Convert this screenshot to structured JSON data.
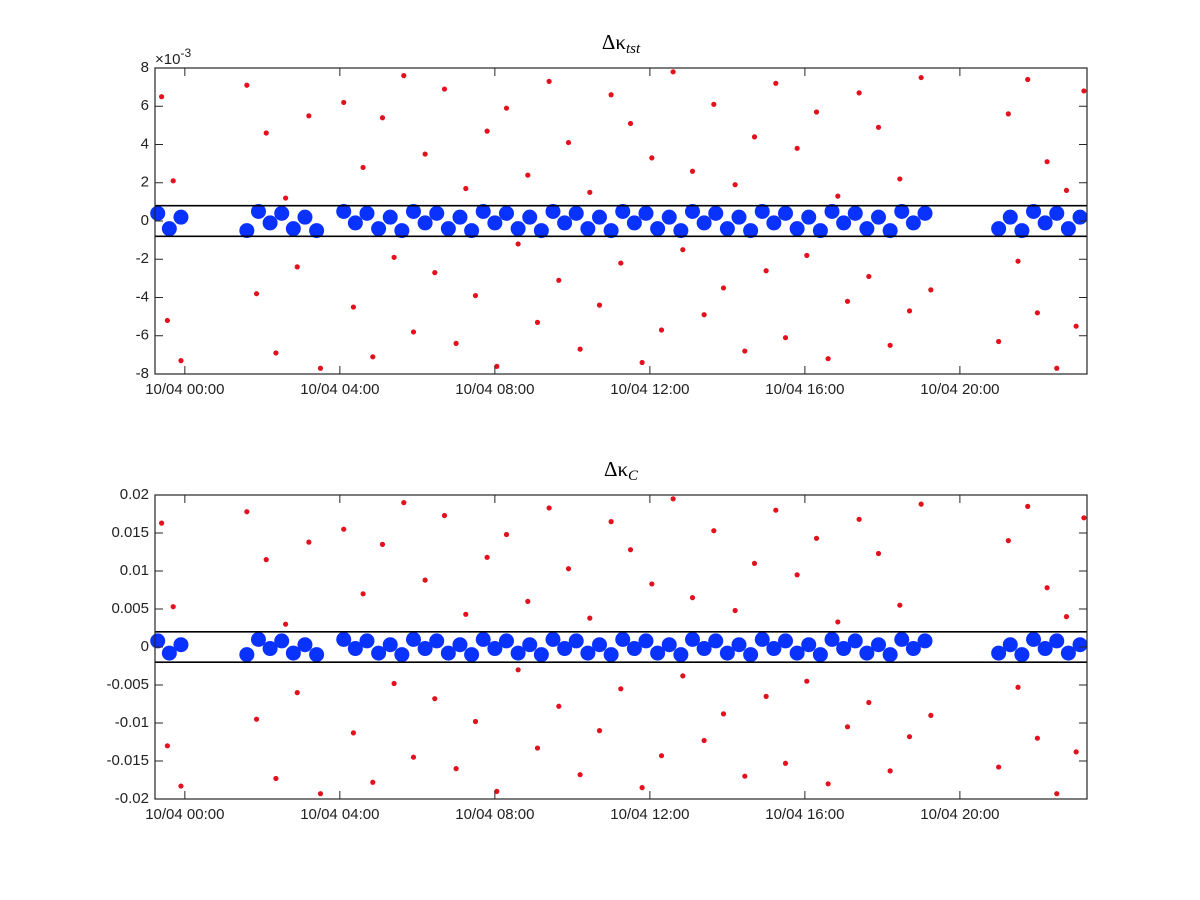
{
  "chart_data": [
    {
      "type": "scatter",
      "title": {
        "main": "Δκ",
        "sub": "tst"
      },
      "y_multiplier": {
        "base": "×10",
        "exponent": "-3"
      },
      "xlim": [
        -0.77,
        23.28
      ],
      "xticks": [
        {
          "value": 0,
          "label": "10/04 00:00"
        },
        {
          "value": 4,
          "label": "10/04 04:00"
        },
        {
          "value": 8,
          "label": "10/04 08:00"
        },
        {
          "value": 12,
          "label": "10/04 12:00"
        },
        {
          "value": 16,
          "label": "10/04 16:00"
        },
        {
          "value": 20,
          "label": "10/04 20:00"
        }
      ],
      "ylim": [
        -0.008,
        0.008
      ],
      "yticks": [
        {
          "value": -0.008,
          "label": "-8"
        },
        {
          "value": -0.006,
          "label": "-6"
        },
        {
          "value": -0.004,
          "label": "-4"
        },
        {
          "value": -0.002,
          "label": "-2"
        },
        {
          "value": 0,
          "label": "0"
        },
        {
          "value": 0.002,
          "label": "2"
        },
        {
          "value": 0.004,
          "label": "4"
        },
        {
          "value": 0.006,
          "label": "6"
        },
        {
          "value": 0.008,
          "label": "8"
        }
      ],
      "hlines": [
        0.0008,
        -0.0008
      ],
      "series": [
        {
          "color": "#e3101d",
          "x": [
            -0.6,
            -0.45,
            -0.3,
            -0.1,
            1.6,
            1.85,
            2.1,
            2.35,
            2.6,
            2.9,
            3.2,
            3.5,
            4.1,
            4.35,
            4.6,
            4.85,
            5.1,
            5.4,
            5.65,
            5.9,
            6.2,
            6.45,
            6.7,
            7.0,
            7.25,
            7.5,
            7.8,
            8.05,
            8.3,
            8.6,
            8.85,
            9.1,
            9.4,
            9.65,
            9.9,
            10.2,
            10.45,
            10.7,
            11.0,
            11.25,
            11.5,
            11.8,
            12.05,
            12.3,
            12.6,
            12.85,
            13.1,
            13.4,
            13.65,
            13.9,
            14.2,
            14.45,
            14.7,
            15.0,
            15.25,
            15.5,
            15.8,
            16.05,
            16.3,
            16.6,
            16.85,
            17.1,
            17.4,
            17.65,
            17.9,
            18.2,
            18.45,
            18.7,
            19.0,
            19.25,
            21.0,
            21.25,
            21.5,
            21.75,
            22.0,
            22.25,
            22.5,
            22.75,
            23.0,
            23.2
          ],
          "values": [
            0.0065,
            -0.0052,
            0.0021,
            -0.0073,
            0.0071,
            -0.0038,
            0.0046,
            -0.0069,
            0.0012,
            -0.0024,
            0.0055,
            -0.0077,
            0.0062,
            -0.0045,
            0.0028,
            -0.0071,
            0.0054,
            -0.0019,
            0.0076,
            -0.0058,
            0.0035,
            -0.0027,
            0.0069,
            -0.0064,
            0.0017,
            -0.0039,
            0.0047,
            -0.0076,
            0.0059,
            -0.0012,
            0.0024,
            -0.0053,
            0.0073,
            -0.0031,
            0.0041,
            -0.0067,
            0.0015,
            -0.0044,
            0.0066,
            -0.0022,
            0.0051,
            -0.0074,
            0.0033,
            -0.0057,
            0.0078,
            -0.0015,
            0.0026,
            -0.0049,
            0.0061,
            -0.0035,
            0.0019,
            -0.0068,
            0.0044,
            -0.0026,
            0.0072,
            -0.0061,
            0.0038,
            -0.0018,
            0.0057,
            -0.0072,
            0.0013,
            -0.0042,
            0.0067,
            -0.0029,
            0.0049,
            -0.0065,
            0.0022,
            -0.0047,
            0.0075,
            -0.0036,
            -0.0063,
            0.0056,
            -0.0021,
            0.0074,
            -0.0048,
            0.0031,
            -0.0077,
            0.0016,
            -0.0055,
            0.0068
          ]
        },
        {
          "color": "#0a32ff",
          "x": [
            -0.7,
            -0.4,
            -0.1,
            1.6,
            1.9,
            2.2,
            2.5,
            2.8,
            3.1,
            3.4,
            4.1,
            4.4,
            4.7,
            5.0,
            5.3,
            5.6,
            5.9,
            6.2,
            6.5,
            6.8,
            7.1,
            7.4,
            7.7,
            8.0,
            8.3,
            8.6,
            8.9,
            9.2,
            9.5,
            9.8,
            10.1,
            10.4,
            10.7,
            11.0,
            11.3,
            11.6,
            11.9,
            12.2,
            12.5,
            12.8,
            13.1,
            13.4,
            13.7,
            14.0,
            14.3,
            14.6,
            14.9,
            15.2,
            15.5,
            15.8,
            16.1,
            16.4,
            16.7,
            17.0,
            17.3,
            17.6,
            17.9,
            18.2,
            18.5,
            18.8,
            19.1,
            21.0,
            21.3,
            21.6,
            21.9,
            22.2,
            22.5,
            22.8,
            23.1
          ],
          "values": [
            0.0004,
            -0.0004,
            0.0002,
            -0.0005,
            0.0005,
            -0.0001,
            0.0004,
            -0.0004,
            0.0002,
            -0.0005,
            0.0005,
            -0.0001,
            0.0004,
            -0.0004,
            0.0002,
            -0.0005,
            0.0005,
            -0.0001,
            0.0004,
            -0.0004,
            0.0002,
            -0.0005,
            0.0005,
            -0.0001,
            0.0004,
            -0.0004,
            0.0002,
            -0.0005,
            0.0005,
            -0.0001,
            0.0004,
            -0.0004,
            0.0002,
            -0.0005,
            0.0005,
            -0.0001,
            0.0004,
            -0.0004,
            0.0002,
            -0.0005,
            0.0005,
            -0.0001,
            0.0004,
            -0.0004,
            0.0002,
            -0.0005,
            0.0005,
            -0.0001,
            0.0004,
            -0.0004,
            0.0002,
            -0.0005,
            0.0005,
            -0.0001,
            0.0004,
            -0.0004,
            0.0002,
            -0.0005,
            0.0005,
            -0.0001,
            0.0004,
            -0.0004,
            0.0002,
            -0.0005,
            0.0005,
            -0.0001,
            0.0004,
            -0.0004,
            0.0002
          ]
        }
      ]
    },
    {
      "type": "scatter",
      "title": {
        "main": "Δκ",
        "sub": "C"
      },
      "xlim": [
        -0.77,
        23.28
      ],
      "xticks": [
        {
          "value": 0,
          "label": "10/04 00:00"
        },
        {
          "value": 4,
          "label": "10/04 04:00"
        },
        {
          "value": 8,
          "label": "10/04 08:00"
        },
        {
          "value": 12,
          "label": "10/04 12:00"
        },
        {
          "value": 16,
          "label": "10/04 16:00"
        },
        {
          "value": 20,
          "label": "10/04 20:00"
        }
      ],
      "ylim": [
        -0.02,
        0.02
      ],
      "yticks": [
        -0.02,
        -0.015,
        -0.01,
        -0.005,
        0,
        0.005,
        0.01,
        0.015,
        0.02
      ],
      "hlines": [
        0.002,
        -0.002
      ],
      "series": [
        {
          "color": "#e3101d",
          "x": [
            -0.6,
            -0.45,
            -0.3,
            -0.1,
            1.6,
            1.85,
            2.1,
            2.35,
            2.6,
            2.9,
            3.2,
            3.5,
            4.1,
            4.35,
            4.6,
            4.85,
            5.1,
            5.4,
            5.65,
            5.9,
            6.2,
            6.45,
            6.7,
            7.0,
            7.25,
            7.5,
            7.8,
            8.05,
            8.3,
            8.6,
            8.85,
            9.1,
            9.4,
            9.65,
            9.9,
            10.2,
            10.45,
            10.7,
            11.0,
            11.25,
            11.5,
            11.8,
            12.05,
            12.3,
            12.6,
            12.85,
            13.1,
            13.4,
            13.65,
            13.9,
            14.2,
            14.45,
            14.7,
            15.0,
            15.25,
            15.5,
            15.8,
            16.05,
            16.3,
            16.6,
            16.85,
            17.1,
            17.4,
            17.65,
            17.9,
            18.2,
            18.45,
            18.7,
            19.0,
            19.25,
            21.0,
            21.25,
            21.5,
            21.75,
            22.0,
            22.25,
            22.5,
            22.75,
            23.0,
            23.2
          ],
          "values": [
            0.0163,
            -0.013,
            0.0053,
            -0.0183,
            0.0178,
            -0.0095,
            0.0115,
            -0.0173,
            0.003,
            -0.006,
            0.0138,
            -0.0193,
            0.0155,
            -0.0113,
            0.007,
            -0.0178,
            0.0135,
            -0.0048,
            0.019,
            -0.0145,
            0.0088,
            -0.0068,
            0.0173,
            -0.016,
            0.0043,
            -0.0098,
            0.0118,
            -0.019,
            0.0148,
            -0.003,
            0.006,
            -0.0133,
            0.0183,
            -0.0078,
            0.0103,
            -0.0168,
            0.0038,
            -0.011,
            0.0165,
            -0.0055,
            0.0128,
            -0.0185,
            0.0083,
            -0.0143,
            0.0195,
            -0.0038,
            0.0065,
            -0.0123,
            0.0153,
            -0.0088,
            0.0048,
            -0.017,
            0.011,
            -0.0065,
            0.018,
            -0.0153,
            0.0095,
            -0.0045,
            0.0143,
            -0.018,
            0.0033,
            -0.0105,
            0.0168,
            -0.0073,
            0.0123,
            -0.0163,
            0.0055,
            -0.0118,
            0.0188,
            -0.009,
            -0.0158,
            0.014,
            -0.0053,
            0.0185,
            -0.012,
            0.0078,
            -0.0193,
            0.004,
            -0.0138,
            0.017
          ]
        },
        {
          "color": "#0a32ff",
          "x": [
            -0.7,
            -0.4,
            -0.1,
            1.6,
            1.9,
            2.2,
            2.5,
            2.8,
            3.1,
            3.4,
            4.1,
            4.4,
            4.7,
            5.0,
            5.3,
            5.6,
            5.9,
            6.2,
            6.5,
            6.8,
            7.1,
            7.4,
            7.7,
            8.0,
            8.3,
            8.6,
            8.9,
            9.2,
            9.5,
            9.8,
            10.1,
            10.4,
            10.7,
            11.0,
            11.3,
            11.6,
            11.9,
            12.2,
            12.5,
            12.8,
            13.1,
            13.4,
            13.7,
            14.0,
            14.3,
            14.6,
            14.9,
            15.2,
            15.5,
            15.8,
            16.1,
            16.4,
            16.7,
            17.0,
            17.3,
            17.6,
            17.9,
            18.2,
            18.5,
            18.8,
            19.1,
            21.0,
            21.3,
            21.6,
            21.9,
            22.2,
            22.5,
            22.8,
            23.1
          ],
          "values": [
            0.0008,
            -0.0008,
            0.0003,
            -0.001,
            0.001,
            -0.0002,
            0.0008,
            -0.0008,
            0.0003,
            -0.001,
            0.001,
            -0.0002,
            0.0008,
            -0.0008,
            0.0003,
            -0.001,
            0.001,
            -0.0002,
            0.0008,
            -0.0008,
            0.0003,
            -0.001,
            0.001,
            -0.0002,
            0.0008,
            -0.0008,
            0.0003,
            -0.001,
            0.001,
            -0.0002,
            0.0008,
            -0.0008,
            0.0003,
            -0.001,
            0.001,
            -0.0002,
            0.0008,
            -0.0008,
            0.0003,
            -0.001,
            0.001,
            -0.0002,
            0.0008,
            -0.0008,
            0.0003,
            -0.001,
            0.001,
            -0.0002,
            0.0008,
            -0.0008,
            0.0003,
            -0.001,
            0.001,
            -0.0002,
            0.0008,
            -0.0008,
            0.0003,
            -0.001,
            0.001,
            -0.0002,
            0.0008,
            -0.0008,
            0.0003,
            -0.001,
            0.001,
            -0.0002,
            0.0008,
            -0.0008,
            0.0003
          ]
        }
      ]
    }
  ]
}
